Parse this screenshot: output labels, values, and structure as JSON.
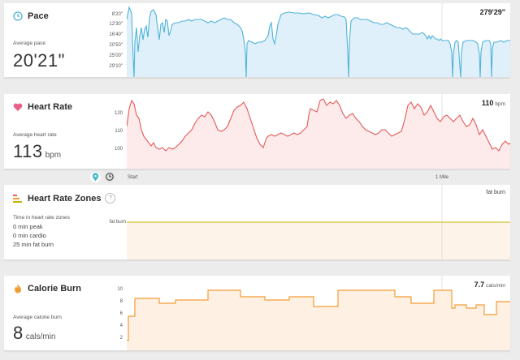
{
  "pace": {
    "title": "Pace",
    "avg_label": "Average pace",
    "avg_value": "20'21\"",
    "corner_value": "279'29\"",
    "y_ticks": [
      "8'20\"",
      "12'30\"",
      "16'40\"",
      "20'50\"",
      "25'00\"",
      "29'10\""
    ],
    "color": "#4fb3d9"
  },
  "heart_rate": {
    "title": "Heart Rate",
    "avg_label": "Average heart rate",
    "avg_value": "113",
    "avg_unit": "bpm",
    "corner_value": "110",
    "corner_unit": "bpm",
    "y_ticks": [
      "120",
      "110",
      "100"
    ],
    "color": "#e35a5a"
  },
  "axis": {
    "start_label": "Start",
    "mile_label": "1 Mile",
    "map_icon": "location-pin-icon",
    "clock_icon": "clock-icon"
  },
  "zones": {
    "title": "Heart Rate Zones",
    "help_mark": "?",
    "time_label": "Time in heart rate zones",
    "peak": "0 min peak",
    "cardio": "0 min cardio",
    "fat_burn": "25 min fat burn",
    "line_label": "fat burn",
    "corner_value": "fat burn",
    "color": "#c8b400"
  },
  "calories": {
    "title": "Calorie Burn",
    "avg_label": "Average calorie burn",
    "avg_value": "8",
    "avg_unit": "cals/min",
    "corner_value": "7.7",
    "corner_unit": "cals/min",
    "y_ticks": [
      "10",
      "8",
      "6",
      "4",
      "2"
    ],
    "color": "#f39c34"
  }
}
